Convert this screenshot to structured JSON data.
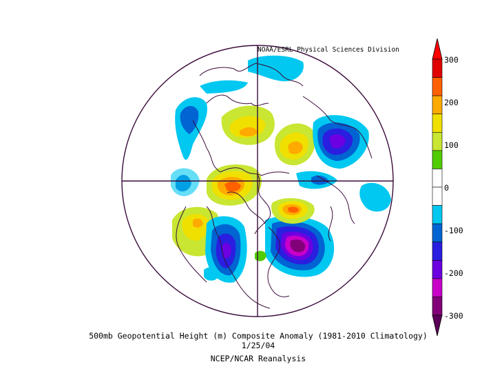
{
  "credit": "NOAA/ESRL Physical Sciences Division",
  "title": "500mb Geopotential Height (m) Composite Anomaly (1981-2010 Climatology)",
  "date": "1/25/04",
  "source": "NCEP/NCAR Reanalysis",
  "colorbar": {
    "ticks": [
      "300",
      "200",
      "100",
      "0",
      "-100",
      "-200",
      "-300"
    ],
    "colors": [
      "#e00000",
      "#ff6000",
      "#ffaa00",
      "#f0e000",
      "#c8e632",
      "#50cc00",
      "#ffffff",
      "#ffffff",
      "#00c8f0",
      "#0064d2",
      "#2a1ee0",
      "#6c00e0",
      "#c800c8",
      "#820078"
    ]
  },
  "map": {
    "projection": "north-polar-stereographic",
    "positive_color_order": [
      "#c8e632",
      "#f0e000",
      "#ffaa00",
      "#ff6000"
    ],
    "negative_color_order": [
      "#00c8f0",
      "#0064d2",
      "#2a1ee0",
      "#6c00e0",
      "#c800c8",
      "#820078"
    ]
  }
}
